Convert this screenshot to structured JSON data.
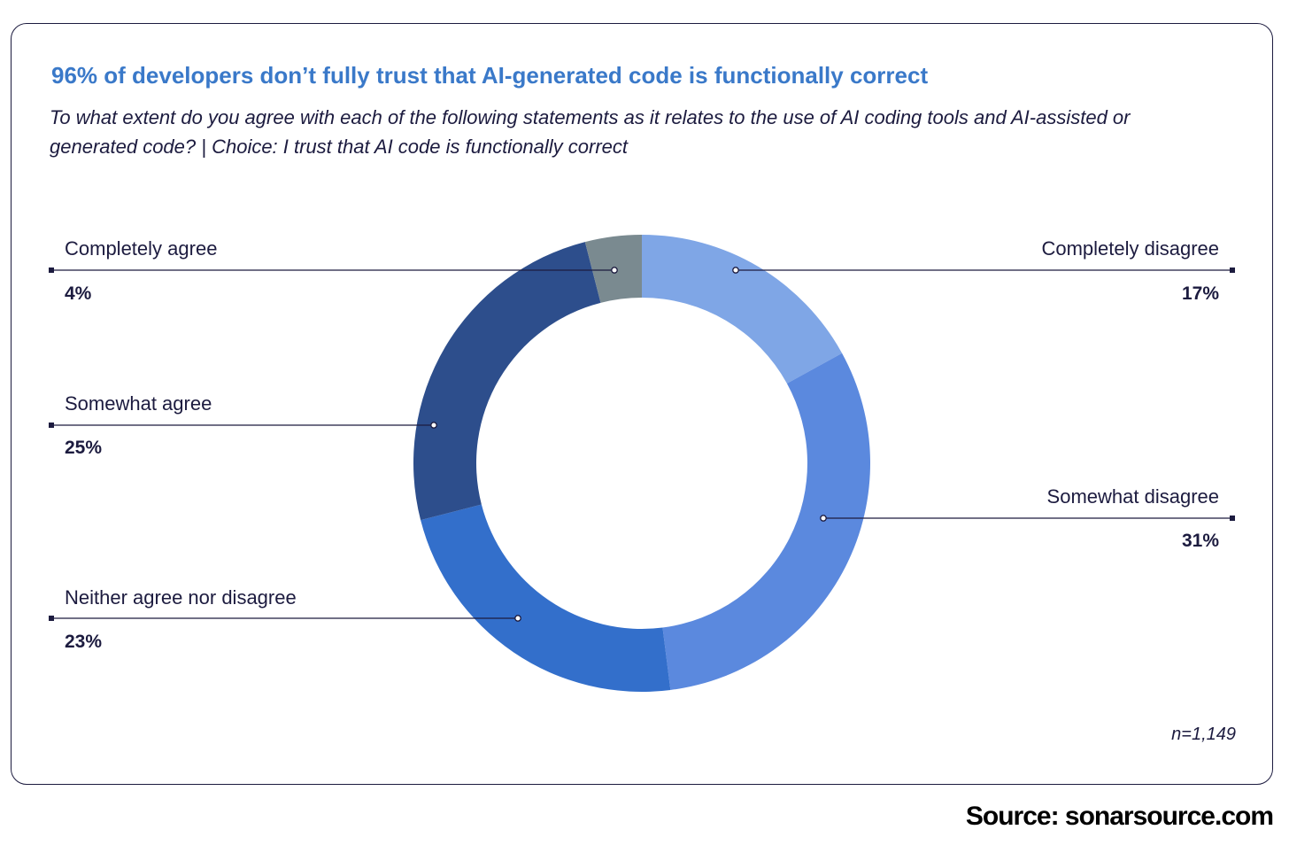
{
  "header": {
    "title": "96% of developers don’t fully trust that AI-generated code is functionally correct",
    "subtitle": "To what extent do you agree with each of the following statements as it relates to the use of AI coding tools and AI-assisted or generated code? | Choice: I trust that AI code is functionally correct"
  },
  "chart_data": {
    "type": "pie",
    "donut": true,
    "title": "96% of developers don’t fully trust that AI-generated code is functionally correct",
    "categories": [
      "Completely disagree",
      "Somewhat disagree",
      "Neither agree nor disagree",
      "Somewhat agree",
      "Completely agree"
    ],
    "values": [
      17,
      31,
      23,
      25,
      4
    ],
    "labels": [
      "17%",
      "31%",
      "23%",
      "25%",
      "4%"
    ],
    "colors": [
      "#7fa6e6",
      "#5b89de",
      "#336fcb",
      "#2d4e8c",
      "#7a8a90"
    ],
    "sample_note": "n=1,149"
  },
  "footer": {
    "source": "Source: sonarsource.com"
  }
}
